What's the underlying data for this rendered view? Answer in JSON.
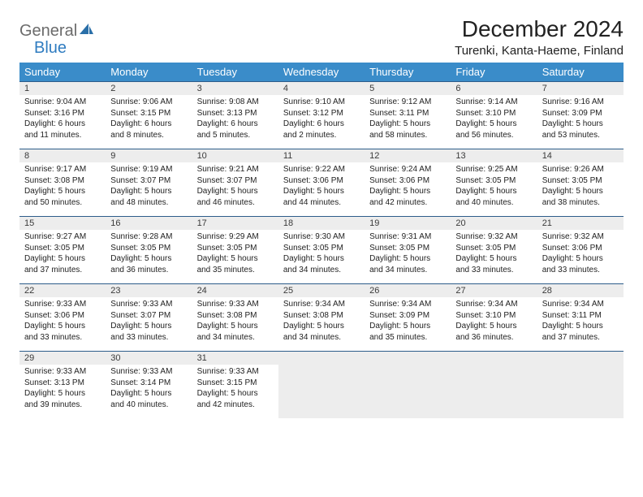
{
  "logo": {
    "general": "General",
    "blue": "Blue"
  },
  "title": "December 2024",
  "subtitle": "Turenki, Kanta-Haeme, Finland",
  "colors": {
    "header_bg": "#3a8cc9",
    "header_text": "#ffffff",
    "daynum_bg": "#ededed",
    "border": "#2d5d8a",
    "text": "#222222",
    "logo_gray": "#6b6b6b",
    "logo_blue": "#2f7cc0"
  },
  "day_headers": [
    "Sunday",
    "Monday",
    "Tuesday",
    "Wednesday",
    "Thursday",
    "Friday",
    "Saturday"
  ],
  "weeks": [
    [
      {
        "n": "1",
        "sr": "9:04 AM",
        "ss": "3:16 PM",
        "dl": "6 hours and 11 minutes."
      },
      {
        "n": "2",
        "sr": "9:06 AM",
        "ss": "3:15 PM",
        "dl": "6 hours and 8 minutes."
      },
      {
        "n": "3",
        "sr": "9:08 AM",
        "ss": "3:13 PM",
        "dl": "6 hours and 5 minutes."
      },
      {
        "n": "4",
        "sr": "9:10 AM",
        "ss": "3:12 PM",
        "dl": "6 hours and 2 minutes."
      },
      {
        "n": "5",
        "sr": "9:12 AM",
        "ss": "3:11 PM",
        "dl": "5 hours and 58 minutes."
      },
      {
        "n": "6",
        "sr": "9:14 AM",
        "ss": "3:10 PM",
        "dl": "5 hours and 56 minutes."
      },
      {
        "n": "7",
        "sr": "9:16 AM",
        "ss": "3:09 PM",
        "dl": "5 hours and 53 minutes."
      }
    ],
    [
      {
        "n": "8",
        "sr": "9:17 AM",
        "ss": "3:08 PM",
        "dl": "5 hours and 50 minutes."
      },
      {
        "n": "9",
        "sr": "9:19 AM",
        "ss": "3:07 PM",
        "dl": "5 hours and 48 minutes."
      },
      {
        "n": "10",
        "sr": "9:21 AM",
        "ss": "3:07 PM",
        "dl": "5 hours and 46 minutes."
      },
      {
        "n": "11",
        "sr": "9:22 AM",
        "ss": "3:06 PM",
        "dl": "5 hours and 44 minutes."
      },
      {
        "n": "12",
        "sr": "9:24 AM",
        "ss": "3:06 PM",
        "dl": "5 hours and 42 minutes."
      },
      {
        "n": "13",
        "sr": "9:25 AM",
        "ss": "3:05 PM",
        "dl": "5 hours and 40 minutes."
      },
      {
        "n": "14",
        "sr": "9:26 AM",
        "ss": "3:05 PM",
        "dl": "5 hours and 38 minutes."
      }
    ],
    [
      {
        "n": "15",
        "sr": "9:27 AM",
        "ss": "3:05 PM",
        "dl": "5 hours and 37 minutes."
      },
      {
        "n": "16",
        "sr": "9:28 AM",
        "ss": "3:05 PM",
        "dl": "5 hours and 36 minutes."
      },
      {
        "n": "17",
        "sr": "9:29 AM",
        "ss": "3:05 PM",
        "dl": "5 hours and 35 minutes."
      },
      {
        "n": "18",
        "sr": "9:30 AM",
        "ss": "3:05 PM",
        "dl": "5 hours and 34 minutes."
      },
      {
        "n": "19",
        "sr": "9:31 AM",
        "ss": "3:05 PM",
        "dl": "5 hours and 34 minutes."
      },
      {
        "n": "20",
        "sr": "9:32 AM",
        "ss": "3:05 PM",
        "dl": "5 hours and 33 minutes."
      },
      {
        "n": "21",
        "sr": "9:32 AM",
        "ss": "3:06 PM",
        "dl": "5 hours and 33 minutes."
      }
    ],
    [
      {
        "n": "22",
        "sr": "9:33 AM",
        "ss": "3:06 PM",
        "dl": "5 hours and 33 minutes."
      },
      {
        "n": "23",
        "sr": "9:33 AM",
        "ss": "3:07 PM",
        "dl": "5 hours and 33 minutes."
      },
      {
        "n": "24",
        "sr": "9:33 AM",
        "ss": "3:08 PM",
        "dl": "5 hours and 34 minutes."
      },
      {
        "n": "25",
        "sr": "9:34 AM",
        "ss": "3:08 PM",
        "dl": "5 hours and 34 minutes."
      },
      {
        "n": "26",
        "sr": "9:34 AM",
        "ss": "3:09 PM",
        "dl": "5 hours and 35 minutes."
      },
      {
        "n": "27",
        "sr": "9:34 AM",
        "ss": "3:10 PM",
        "dl": "5 hours and 36 minutes."
      },
      {
        "n": "28",
        "sr": "9:34 AM",
        "ss": "3:11 PM",
        "dl": "5 hours and 37 minutes."
      }
    ],
    [
      {
        "n": "29",
        "sr": "9:33 AM",
        "ss": "3:13 PM",
        "dl": "5 hours and 39 minutes."
      },
      {
        "n": "30",
        "sr": "9:33 AM",
        "ss": "3:14 PM",
        "dl": "5 hours and 40 minutes."
      },
      {
        "n": "31",
        "sr": "9:33 AM",
        "ss": "3:15 PM",
        "dl": "5 hours and 42 minutes."
      },
      null,
      null,
      null,
      null
    ]
  ],
  "labels": {
    "sunrise": "Sunrise:",
    "sunset": "Sunset:",
    "daylight": "Daylight:"
  }
}
